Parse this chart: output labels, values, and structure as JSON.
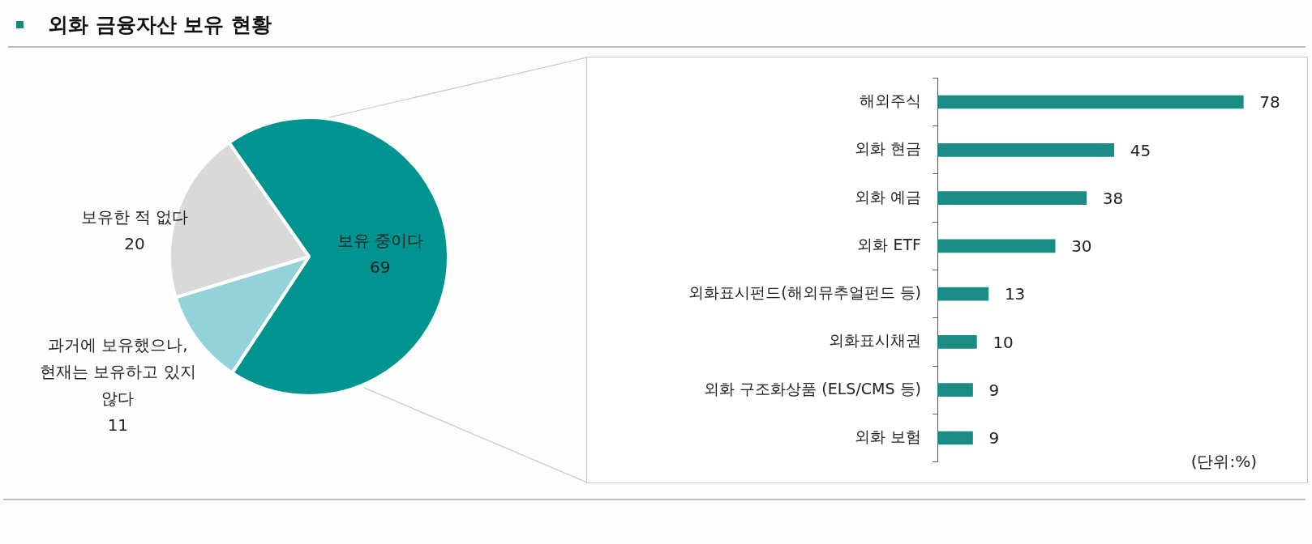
{
  "chart_data": [
    {
      "type": "pie",
      "title": "외화 금융자산 보유 현황",
      "categories": [
        "보유 중이다",
        "과거에 보유했으나, 현재는 보유하고 있지 않다",
        "보유한 적 없다"
      ],
      "values": [
        69,
        11,
        20
      ],
      "colors": [
        "#009490",
        "#93d2d8",
        "#d9d9d9"
      ],
      "data_labels": true,
      "legend": false
    },
    {
      "type": "bar",
      "orientation": "horizontal",
      "categories": [
        "해외주식",
        "외화 현금",
        "외화 예금",
        "외화 ETF",
        "외화표시펀드(해외뮤추얼펀드 등)",
        "외화표시채권",
        "외화 구조화상품 (ELS/CMS 등)",
        "외화 보험"
      ],
      "values": [
        78,
        45,
        38,
        30,
        13,
        10,
        9,
        9
      ],
      "color": "#1a8c84",
      "data_labels": true,
      "grid": false,
      "legend": false,
      "annotations": [
        "(단위:%)"
      ]
    }
  ]
}
